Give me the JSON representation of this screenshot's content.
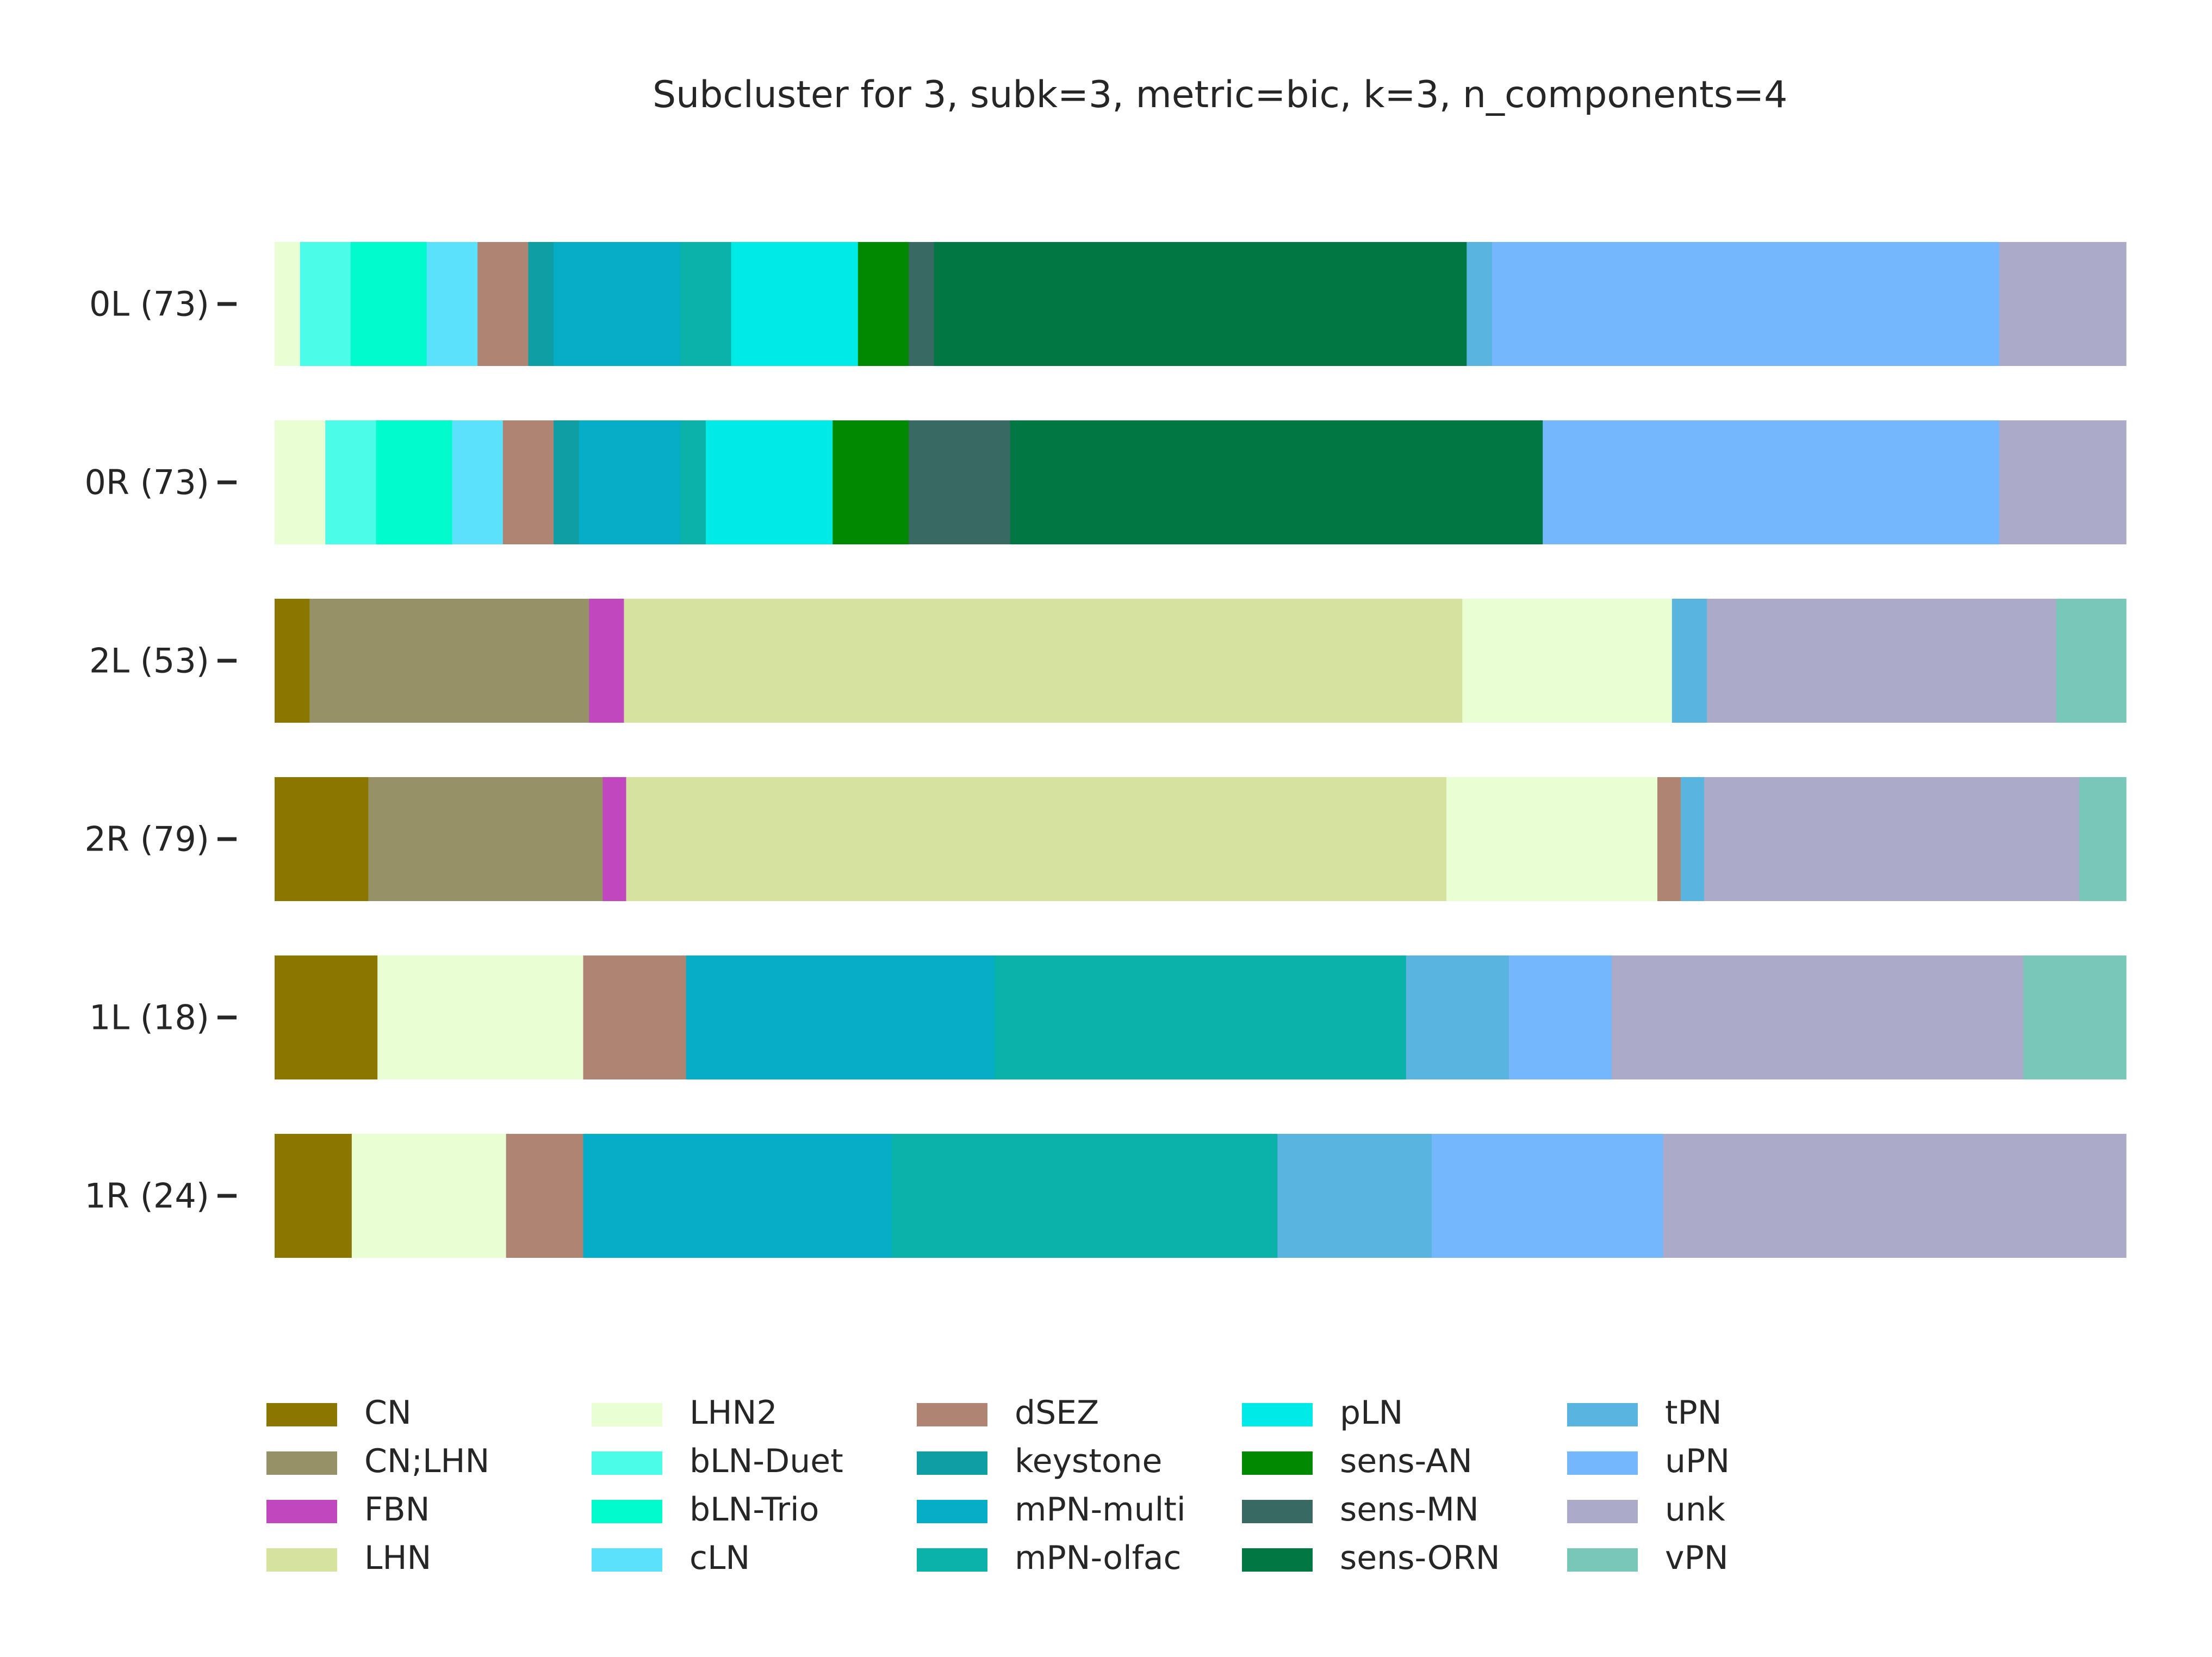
{
  "chart_data": {
    "type": "bar",
    "orientation": "horizontal-stacked-proportional",
    "title": "Subcluster for 3, subk=3, metric=bic, k=3, n_components=4",
    "xlabel": "",
    "ylabel": "",
    "xlim": [
      0,
      1
    ],
    "grid": false,
    "legend_position": "bottom",
    "categories": [
      "CN",
      "CN;LHN",
      "FBN",
      "LHN",
      "LHN2",
      "bLN-Duet",
      "bLN-Trio",
      "cLN",
      "dSEZ",
      "keystone",
      "mPN-multi",
      "mPN-olfac",
      "pLN",
      "sens-AN",
      "sens-MN",
      "sens-ORN",
      "tPN",
      "uPN",
      "unk",
      "vPN"
    ],
    "colors": {
      "CN": "#8b7700",
      "CN;LHN": "#969166",
      "FBN": "#c147be",
      "LHN": "#d5e39f",
      "LHN2": "#e9fed3",
      "bLN-Duet": "#4bfde9",
      "bLN-Trio": "#01fbcd",
      "cLN": "#5ce1fd",
      "dSEZ": "#b08472",
      "keystone": "#0e9ea3",
      "mPN-multi": "#06adc7",
      "mPN-olfac": "#0ab2aa",
      "pLN": "#00eae8",
      "sens-AN": "#018a01",
      "sens-MN": "#386962",
      "sens-ORN": "#017844",
      "tPN": "#5ab4e0",
      "uPN": "#75b7fd",
      "unk": "#acaac9",
      "vPN": "#78c7b8"
    },
    "rows": [
      {
        "label": "0L (73)",
        "segments": [
          [
            "LHN2",
            1
          ],
          [
            "bLN-Duet",
            2
          ],
          [
            "bLN-Trio",
            3
          ],
          [
            "cLN",
            2
          ],
          [
            "dSEZ",
            2
          ],
          [
            "keystone",
            1
          ],
          [
            "mPN-multi",
            5
          ],
          [
            "mPN-olfac",
            2
          ],
          [
            "pLN",
            5
          ],
          [
            "sens-AN",
            2
          ],
          [
            "sens-MN",
            1
          ],
          [
            "sens-ORN",
            21
          ],
          [
            "tPN",
            1
          ],
          [
            "uPN",
            20
          ],
          [
            "unk",
            5
          ]
        ]
      },
      {
        "label": "0R (73)",
        "segments": [
          [
            "LHN2",
            2
          ],
          [
            "bLN-Duet",
            2
          ],
          [
            "bLN-Trio",
            3
          ],
          [
            "cLN",
            2
          ],
          [
            "dSEZ",
            2
          ],
          [
            "keystone",
            1
          ],
          [
            "mPN-multi",
            4
          ],
          [
            "mPN-olfac",
            1
          ],
          [
            "pLN",
            5
          ],
          [
            "sens-AN",
            3
          ],
          [
            "sens-MN",
            4
          ],
          [
            "sens-ORN",
            21
          ],
          [
            "uPN",
            18
          ],
          [
            "unk",
            5
          ]
        ]
      },
      {
        "label": "2L (53)",
        "segments": [
          [
            "CN",
            1
          ],
          [
            "CN;LHN",
            8
          ],
          [
            "FBN",
            1
          ],
          [
            "LHN",
            24
          ],
          [
            "LHN2",
            6
          ],
          [
            "tPN",
            1
          ],
          [
            "unk",
            10
          ],
          [
            "vPN",
            2
          ]
        ]
      },
      {
        "label": "2R (79)",
        "segments": [
          [
            "CN",
            4
          ],
          [
            "CN;LHN",
            10
          ],
          [
            "FBN",
            1
          ],
          [
            "LHN",
            35
          ],
          [
            "LHN2",
            9
          ],
          [
            "dSEZ",
            1
          ],
          [
            "tPN",
            1
          ],
          [
            "unk",
            16
          ],
          [
            "vPN",
            2
          ]
        ]
      },
      {
        "label": "1L (18)",
        "segments": [
          [
            "CN",
            1
          ],
          [
            "LHN2",
            2
          ],
          [
            "dSEZ",
            1
          ],
          [
            "mPN-multi",
            3
          ],
          [
            "mPN-olfac",
            4
          ],
          [
            "tPN",
            1
          ],
          [
            "uPN",
            1
          ],
          [
            "unk",
            4
          ],
          [
            "vPN",
            1
          ]
        ]
      },
      {
        "label": "1R (24)",
        "segments": [
          [
            "CN",
            1
          ],
          [
            "LHN2",
            2
          ],
          [
            "dSEZ",
            1
          ],
          [
            "mPN-multi",
            4
          ],
          [
            "mPN-olfac",
            5
          ],
          [
            "tPN",
            2
          ],
          [
            "uPN",
            3
          ],
          [
            "unk",
            6
          ]
        ]
      }
    ]
  }
}
